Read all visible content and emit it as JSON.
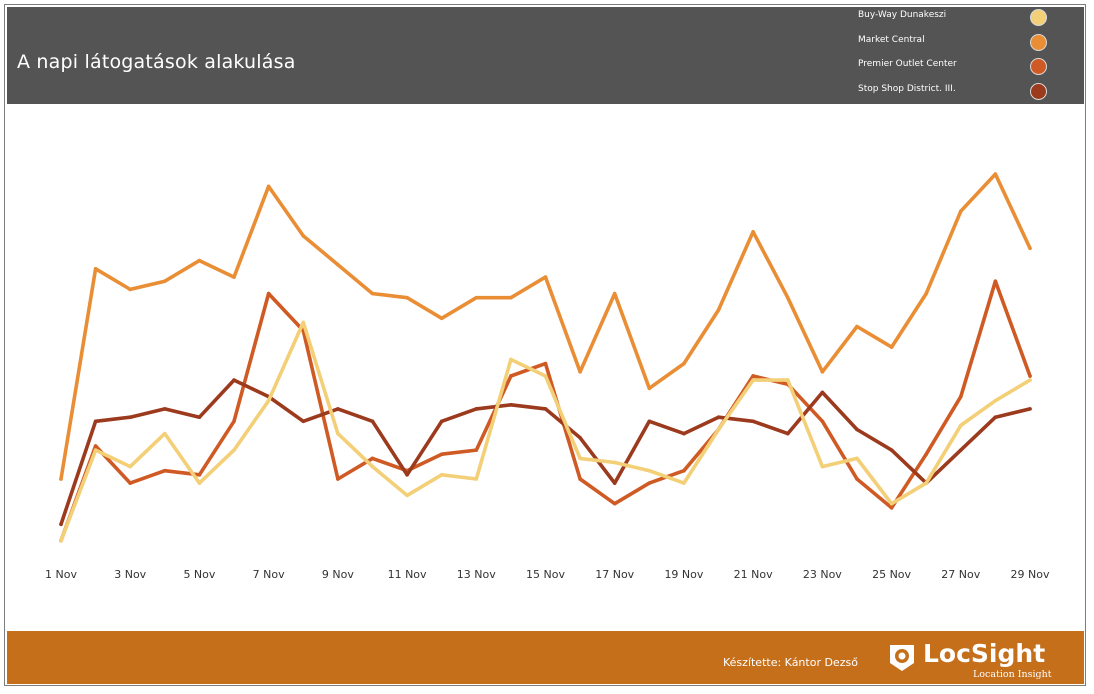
{
  "header": {
    "title": "A napi látogatások alakulása"
  },
  "legend": [
    {
      "label": "Buy-Way Dunakeszi",
      "color": "#f3cf77"
    },
    {
      "label": "Market Central",
      "color": "#e98e35"
    },
    {
      "label": "Premier Outlet Center",
      "color": "#cf5a24"
    },
    {
      "label": "Stop Shop District. III.",
      "color": "#9c3a1e"
    }
  ],
  "footer": {
    "credit": "Készítette: Kántor Dezső",
    "logo_name": "LocSight",
    "logo_tagline": "Location Insight",
    "background": "#c56f1b"
  },
  "chart_data": {
    "type": "line",
    "title": "A napi látogatások alakulása",
    "xlabel": "",
    "ylabel": "",
    "x": [
      1,
      2,
      3,
      4,
      5,
      6,
      7,
      8,
      9,
      10,
      11,
      12,
      13,
      14,
      15,
      16,
      17,
      18,
      19,
      20,
      21,
      22,
      23,
      24,
      25,
      26,
      27,
      28,
      29
    ],
    "tick_labels": [
      "1 Nov",
      "3 Nov",
      "5 Nov",
      "7 Nov",
      "9 Nov",
      "11 Nov",
      "13 Nov",
      "15 Nov",
      "17 Nov",
      "19 Nov",
      "21 Nov",
      "23 Nov",
      "25 Nov",
      "27 Nov",
      "29 Nov"
    ],
    "tick_positions": [
      1,
      3,
      5,
      7,
      9,
      11,
      13,
      15,
      17,
      19,
      21,
      23,
      25,
      27,
      29
    ],
    "ylim": [
      0,
      100
    ],
    "grid": false,
    "legend_position": "top-right",
    "series": [
      {
        "name": "Market Central",
        "color": "#e98e35",
        "values": [
          17,
          68,
          63,
          65,
          70,
          66,
          88,
          76,
          69,
          62,
          61,
          56,
          61,
          61,
          66,
          43,
          62,
          39,
          45,
          58,
          77,
          61,
          43,
          54,
          49,
          62,
          82,
          91,
          73
        ]
      },
      {
        "name": "Premier Outlet Center",
        "color": "#cf5a24",
        "values": [
          2,
          25,
          16,
          19,
          18,
          31,
          62,
          53,
          17,
          22,
          19,
          23,
          24,
          42,
          45,
          17,
          11,
          16,
          19,
          29,
          42,
          40,
          31,
          17,
          10,
          23,
          37,
          65,
          42
        ]
      },
      {
        "name": "Stop Shop District. III.",
        "color": "#9c3a1e",
        "values": [
          6,
          31,
          32,
          34,
          32,
          41,
          37,
          31,
          34,
          31,
          18,
          31,
          34,
          35,
          34,
          27,
          16,
          31,
          28,
          32,
          31,
          28,
          38,
          29,
          24,
          16,
          24,
          32,
          34
        ]
      },
      {
        "name": "Buy-Way Dunakeszi",
        "color": "#f3cf77",
        "values": [
          2,
          24,
          20,
          28,
          16,
          24,
          36,
          55,
          28,
          20,
          13,
          18,
          17,
          46,
          42,
          22,
          21,
          19,
          16,
          29,
          41,
          41,
          20,
          22,
          11,
          16,
          30,
          36,
          41
        ]
      }
    ]
  }
}
